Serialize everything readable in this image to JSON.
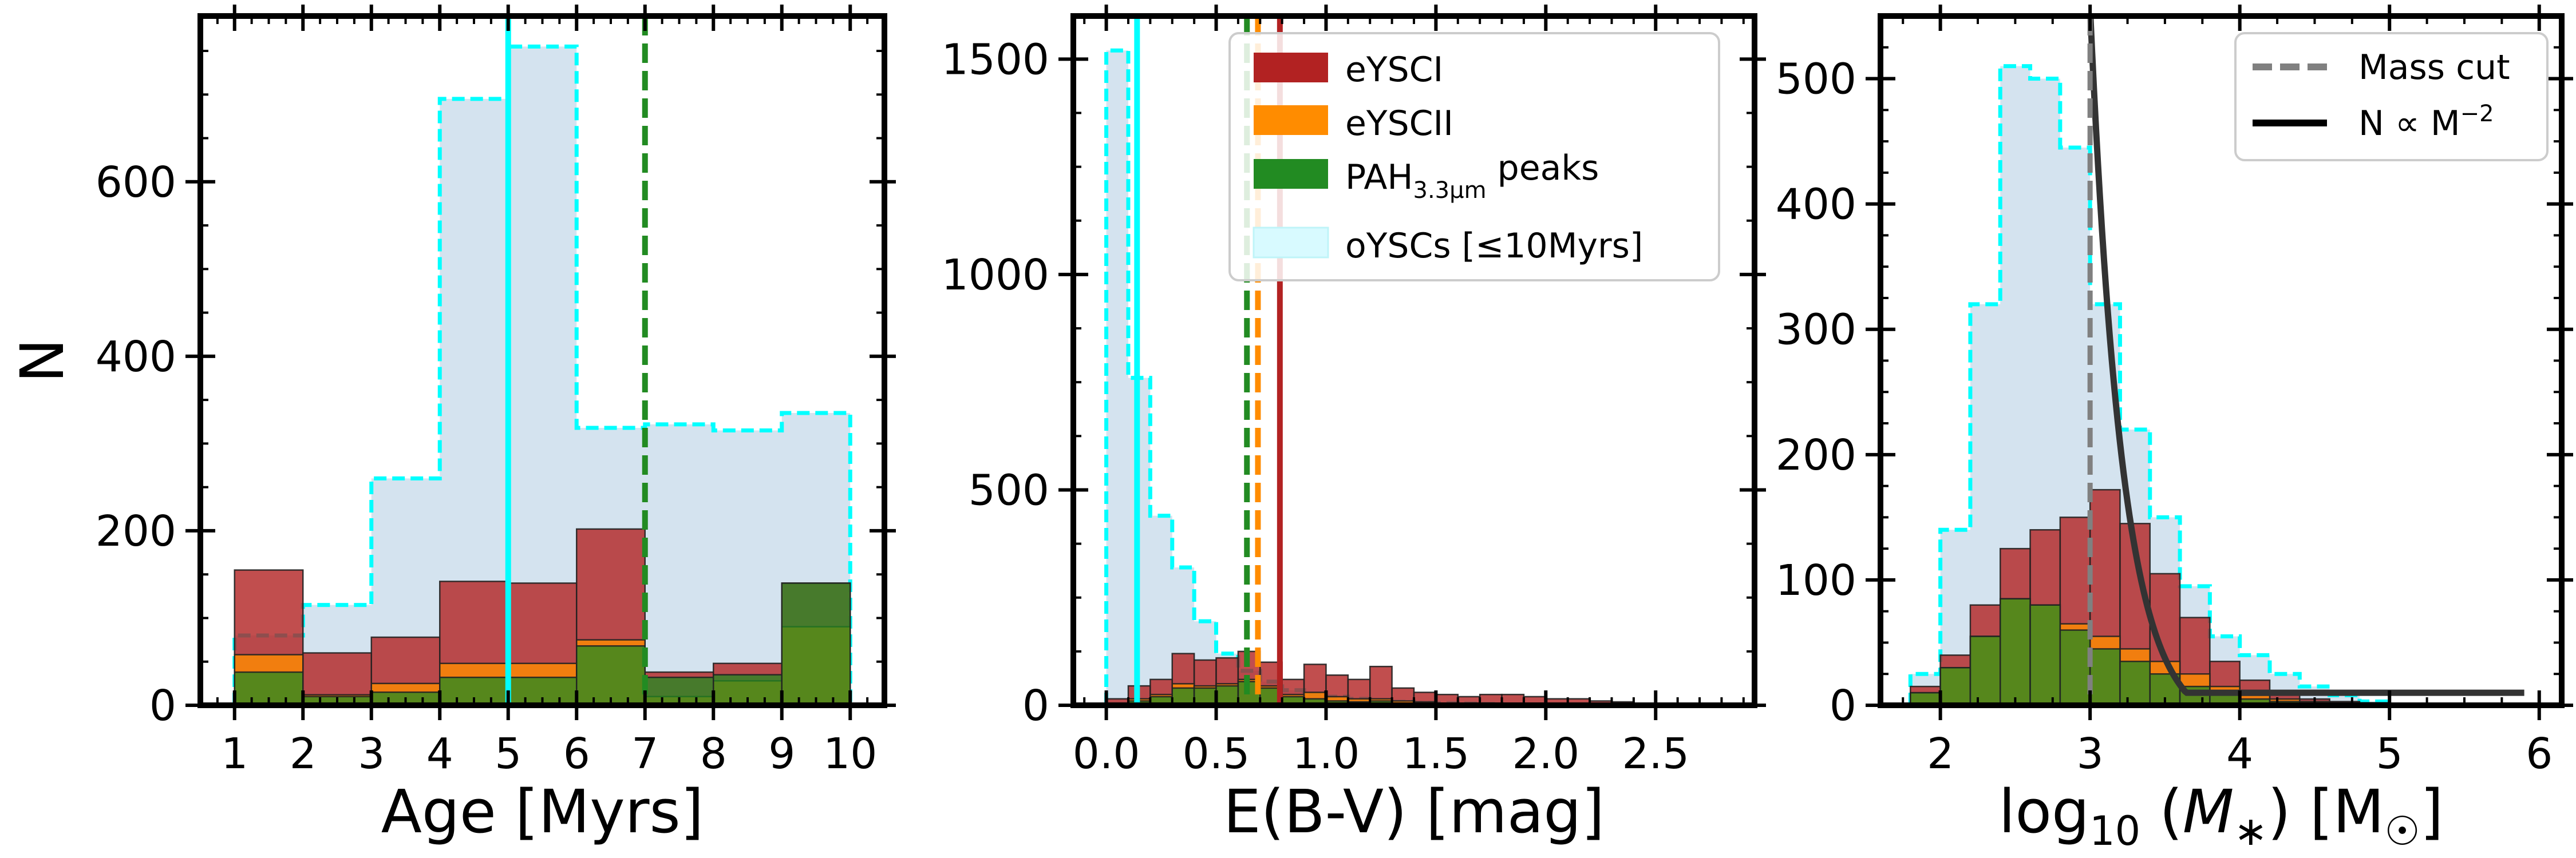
{
  "colors": {
    "eYSCI": "#b22222",
    "eYSCII": "#ff8c00",
    "pah": "#228b22",
    "oYSC_fill": "#d4e3ef",
    "oYSC_edge": "#00ffff",
    "mass_cut": "#808080",
    "power_law": "#000000"
  },
  "chart_data": [
    {
      "type": "histogram",
      "xlabel": "Age [Myrs]",
      "ylabel": "N",
      "xlim": [
        0.5,
        10.5
      ],
      "ylim": [
        0,
        790
      ],
      "xticks": [
        1,
        2,
        3,
        4,
        5,
        6,
        7,
        8,
        9,
        10
      ],
      "yticks": [
        0,
        200,
        400,
        600
      ],
      "bins": [
        1,
        2,
        3,
        4,
        5,
        6,
        7,
        8,
        9,
        10
      ],
      "series": [
        {
          "name": "oYSCs [≤10Myrs]",
          "counts": [
            80,
            115,
            260,
            695,
            755,
            318,
            322,
            315,
            335
          ]
        },
        {
          "name": "eYSCI",
          "counts": [
            155,
            60,
            78,
            142,
            140,
            202,
            38,
            48,
            140
          ]
        },
        {
          "name": "eYSCII",
          "counts": [
            58,
            12,
            25,
            48,
            48,
            75,
            10,
            28,
            90
          ]
        },
        {
          "name": "PAH3.3μm peaks",
          "counts": [
            38,
            10,
            15,
            32,
            32,
            68,
            32,
            35,
            140
          ]
        }
      ],
      "vlines": [
        {
          "series": "oYSCs [≤10Myrs]",
          "x": 5.0,
          "style": "solid"
        },
        {
          "series": "PAH3.3μm peaks",
          "x": 7.0,
          "style": "dashed"
        }
      ]
    },
    {
      "type": "histogram",
      "xlabel": "E(B-V) [mag]",
      "ylabel": "",
      "xlim": [
        -0.15,
        2.95
      ],
      "ylim": [
        0,
        1600
      ],
      "xticks": [
        0.0,
        0.5,
        1.0,
        1.5,
        2.0,
        2.5
      ],
      "xtick_labels": [
        "0.0",
        "0.5",
        "1.0",
        "1.5",
        "2.0",
        "2.5"
      ],
      "yticks": [
        0,
        500,
        1000,
        1500
      ],
      "bins": [
        0.0,
        0.1,
        0.2,
        0.3,
        0.4,
        0.5,
        0.6,
        0.7,
        0.8,
        0.9,
        1.0,
        1.1,
        1.2,
        1.3,
        1.4,
        1.5,
        1.6,
        1.7,
        1.8,
        1.9,
        2.0,
        2.1,
        2.2,
        2.3,
        2.4,
        2.5
      ],
      "series": [
        {
          "name": "oYSCs [≤10Myrs]",
          "counts": [
            1520,
            760,
            440,
            320,
            195,
            120,
            80,
            55,
            35,
            25,
            20,
            15,
            10,
            8,
            5,
            5,
            4,
            3,
            2,
            2,
            2,
            1,
            1,
            1,
            1
          ]
        },
        {
          "name": "eYSCI",
          "counts": [
            15,
            45,
            60,
            120,
            105,
            110,
            125,
            100,
            60,
            95,
            70,
            60,
            90,
            40,
            30,
            25,
            20,
            25,
            25,
            20,
            15,
            15,
            10,
            8,
            5
          ]
        },
        {
          "name": "eYSCII",
          "counts": [
            5,
            15,
            25,
            50,
            45,
            50,
            60,
            45,
            25,
            30,
            20,
            15,
            15,
            10,
            8,
            5,
            4,
            3,
            3,
            2,
            2,
            1,
            1,
            1,
            1
          ]
        },
        {
          "name": "PAH3.3μm peaks",
          "counts": [
            5,
            10,
            20,
            40,
            40,
            45,
            55,
            40,
            20,
            15,
            10,
            8,
            10,
            5,
            4,
            3,
            2,
            2,
            2,
            1,
            1,
            1,
            1,
            1,
            1
          ]
        }
      ],
      "vlines": [
        {
          "series": "oYSCs [≤10Myrs]",
          "x": 0.14,
          "style": "solid"
        },
        {
          "series": "eYSCI",
          "x": 0.79,
          "style": "solid"
        },
        {
          "series": "eYSCII",
          "x": 0.69,
          "style": "dashed"
        },
        {
          "series": "PAH3.3μm peaks",
          "x": 0.64,
          "style": "dashed"
        }
      ],
      "legend": {
        "position": "upper-right",
        "entries": [
          "eYSCI",
          "eYSCII",
          "PAH3.3μm peaks",
          "oYSCs [≤10Myrs]"
        ]
      },
      "legend_labels": {
        "eYSCI": "eYSCI",
        "eYSCII": "eYSCII",
        "pah_main": "PAH",
        "pah_sub": "3.3μm",
        "pah_tail": " peaks",
        "oYSC": "oYSCs [≤10Myrs]"
      }
    },
    {
      "type": "histogram",
      "xlabel": "log10(M*) [M☉]",
      "ylabel": "",
      "xlim": [
        1.6,
        6.15
      ],
      "ylim": [
        0,
        550
      ],
      "xticks": [
        2,
        3,
        4,
        5,
        6
      ],
      "yticks": [
        0,
        100,
        200,
        300,
        400,
        500
      ],
      "bins": [
        1.8,
        2.0,
        2.2,
        2.4,
        2.6,
        2.8,
        3.0,
        3.2,
        3.4,
        3.6,
        3.8,
        4.0,
        4.2,
        4.4,
        4.6,
        4.8,
        5.0
      ],
      "series": [
        {
          "name": "oYSCs [≤10Myrs]",
          "counts": [
            25,
            140,
            320,
            510,
            500,
            445,
            320,
            220,
            150,
            95,
            55,
            40,
            25,
            15,
            8,
            3
          ]
        },
        {
          "name": "eYSCI",
          "counts": [
            15,
            40,
            80,
            125,
            140,
            150,
            172,
            145,
            105,
            70,
            35,
            20,
            10,
            5,
            3,
            2
          ]
        },
        {
          "name": "eYSCII",
          "counts": [
            10,
            30,
            55,
            85,
            80,
            65,
            55,
            45,
            35,
            25,
            15,
            8,
            5,
            3,
            2,
            1
          ]
        },
        {
          "name": "PAH3.3μm peaks",
          "counts": [
            10,
            30,
            55,
            85,
            80,
            60,
            45,
            35,
            25,
            15,
            10,
            5,
            3,
            2,
            1,
            1
          ]
        }
      ],
      "vlines": [
        {
          "series": "Mass cut",
          "x": 3.0,
          "style": "dashed"
        }
      ],
      "power_law": {
        "name": "N ∝ M^-2",
        "norm": 172,
        "pivot": 3.0,
        "slope": -2,
        "floor": 10,
        "x_range": [
          3.0,
          5.9
        ]
      },
      "legend": {
        "position": "upper-right",
        "entries": [
          "Mass cut",
          "N ∝ M^-2"
        ]
      },
      "legend_labels": {
        "mass_cut": "Mass cut",
        "power_main": "N ∝ M",
        "power_sup": "−2"
      }
    }
  ]
}
